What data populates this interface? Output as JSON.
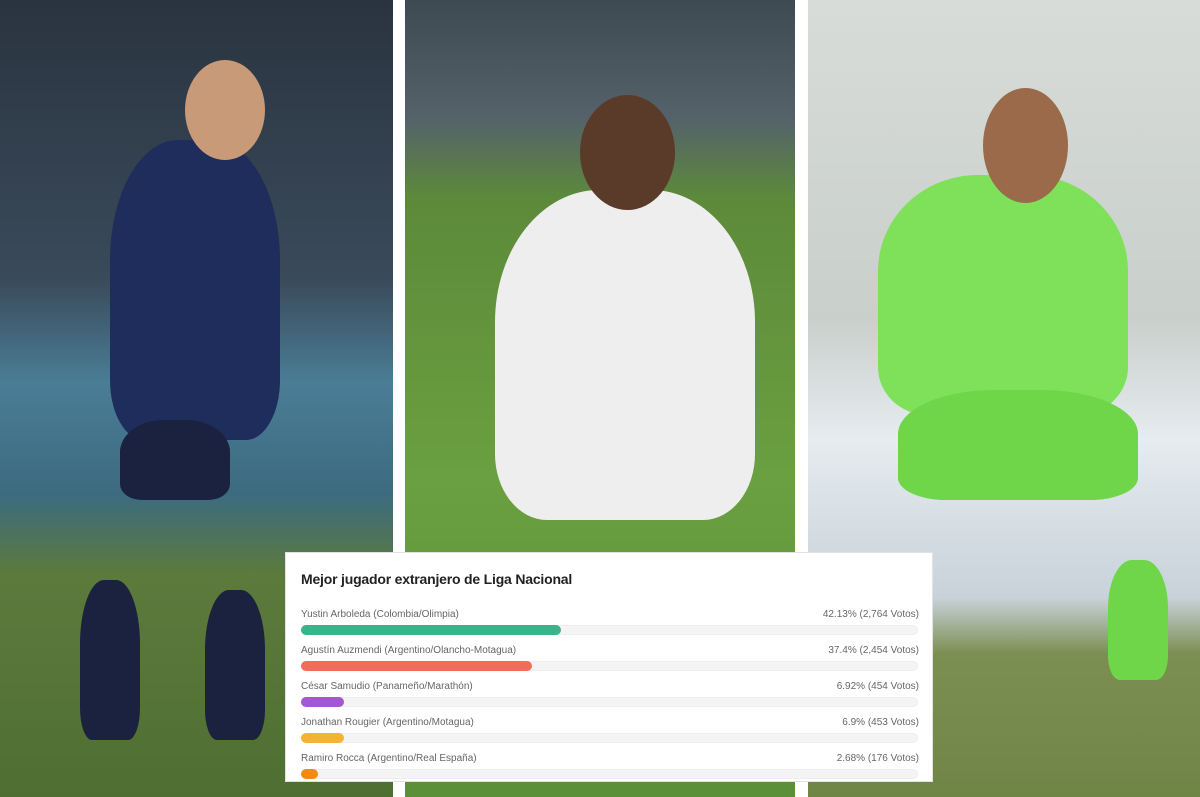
{
  "poll": {
    "title": "Mejor jugador extranjero de Liga Nacional",
    "options": [
      {
        "label": "Yustin Arboleda (Colombia/Olimpia)",
        "result": "42.13% (2,764 Votos)",
        "percent": 42.13,
        "color": "#3bb38a"
      },
      {
        "label": "Agustín Auzmendi (Argentino/Olancho-Motagua)",
        "result": "37.4% (2,454 Votos)",
        "percent": 37.4,
        "color": "#f26b5b"
      },
      {
        "label": "César Samudio (Panameño/Marathón)",
        "result": "6.92% (454 Votos)",
        "percent": 6.92,
        "color": "#a357d0"
      },
      {
        "label": "Jonathan Rougier (Argentino/Motagua)",
        "result": "6.9% (453 Votos)",
        "percent": 6.9,
        "color": "#f4b431"
      },
      {
        "label": "Ramiro Rocca (Argentino/Real España)",
        "result": "2.68% (176 Votos)",
        "percent": 2.68,
        "color": "#f08a12"
      }
    ]
  },
  "photos": [
    {
      "subject": "player-blue-kit"
    },
    {
      "subject": "player-white-kit"
    },
    {
      "subject": "goalkeeper-green-kit"
    }
  ]
}
